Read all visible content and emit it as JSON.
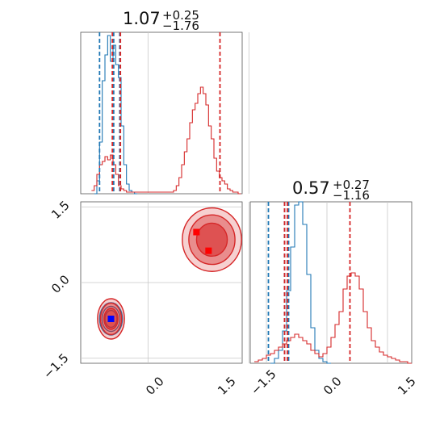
{
  "chart_data": [
    {
      "panel": "top-left",
      "type": "histogram",
      "title": {
        "value": "1.07",
        "upper": "+0.25",
        "lower": "−1.76"
      },
      "xlim": [
        -1.0,
        1.4
      ],
      "ylim": [
        0,
        1.0
      ],
      "grid": true,
      "series": [
        {
          "color": "#1f77b4",
          "x": [
            -0.78,
            -0.74,
            -0.7,
            -0.66,
            -0.62,
            -0.58,
            -0.54,
            -0.5,
            -0.46,
            -0.42,
            -0.38,
            -0.34,
            -0.3,
            -0.26,
            -0.22,
            -0.18
          ],
          "values": [
            0.0,
            0.08,
            0.32,
            0.7,
            0.86,
            0.98,
            0.82,
            0.92,
            0.8,
            0.72,
            0.42,
            0.18,
            0.06,
            0.02,
            0.01,
            0.0
          ]
        },
        {
          "color": "#d62728",
          "x": [
            -0.82,
            -0.78,
            -0.74,
            -0.7,
            -0.66,
            -0.62,
            -0.58,
            -0.54,
            -0.5,
            -0.46,
            -0.42,
            -0.38,
            -0.34,
            -0.3,
            0.36,
            0.4,
            0.44,
            0.48,
            0.52,
            0.56,
            0.6,
            0.64,
            0.68,
            0.72,
            0.76,
            0.8,
            0.84,
            0.88,
            0.92,
            0.96,
            1.0,
            1.04,
            1.08,
            1.12,
            1.16,
            1.2,
            1.24,
            1.28,
            1.32,
            1.36
          ],
          "values": [
            0.02,
            0.05,
            0.12,
            0.18,
            0.2,
            0.23,
            0.21,
            0.24,
            0.18,
            0.12,
            0.05,
            0.03,
            0.02,
            0.01,
            0.01,
            0.02,
            0.05,
            0.1,
            0.18,
            0.26,
            0.34,
            0.44,
            0.52,
            0.56,
            0.62,
            0.66,
            0.62,
            0.55,
            0.42,
            0.34,
            0.22,
            0.14,
            0.1,
            0.08,
            0.06,
            0.03,
            0.02,
            0.01,
            0.01,
            0.0
          ]
        }
      ],
      "vlines": [
        {
          "color": "#1f77b4",
          "x": -0.72
        },
        {
          "color": "#1f77b4",
          "x": -0.51
        },
        {
          "color": "#1f77b4",
          "x": -0.42
        },
        {
          "color": "#d62728",
          "x": -0.53
        },
        {
          "color": "#d62728",
          "x": -0.41
        },
        {
          "color": "#d62728",
          "x": 1.07
        }
      ]
    },
    {
      "panel": "bottom-left",
      "type": "scatter",
      "xlim": [
        -1.0,
        1.4
      ],
      "ylim": [
        -1.6,
        1.6
      ],
      "yticks": [
        "1.5",
        "0.0",
        "−1.5"
      ],
      "xticks": [
        "0.0",
        "1.5"
      ],
      "grid": true,
      "blobs": [
        {
          "color": "#1f77b4",
          "cx": -0.55,
          "cy": -0.72,
          "rx": 0.17,
          "ry": 0.32
        },
        {
          "color": "#d62728",
          "cx": -0.55,
          "cy": -0.72,
          "rx": 0.2,
          "ry": 0.4
        },
        {
          "color": "#d62728",
          "cx": 0.95,
          "cy": 0.85,
          "rx": 0.44,
          "ry": 0.63
        }
      ],
      "markers": [
        {
          "color": "#ff0000",
          "x": 0.72,
          "y": 1.0
        },
        {
          "color": "#ff0000",
          "x": 0.9,
          "y": 0.63
        },
        {
          "color": "#0000ff",
          "x": -0.55,
          "y": -0.72
        }
      ]
    },
    {
      "panel": "bottom-right",
      "type": "histogram",
      "title": {
        "value": "0.57",
        "upper": "+0.27",
        "lower": "−1.16"
      },
      "xlim": [
        -1.9,
        2.1
      ],
      "ylim": [
        0,
        1.0
      ],
      "xticks": [
        "−1.5",
        "0.0",
        "1.5"
      ],
      "grid": true,
      "series": [
        {
          "color": "#1f77b4",
          "x": [
            -1.35,
            -1.25,
            -1.15,
            -1.05,
            -0.95,
            -0.85,
            -0.75,
            -0.65,
            -0.55,
            -0.45,
            -0.35,
            -0.25,
            -0.15,
            -0.05,
            0.05
          ],
          "values": [
            0.0,
            0.03,
            0.08,
            0.2,
            0.45,
            0.72,
            0.98,
            1.0,
            0.86,
            0.55,
            0.22,
            0.08,
            0.03,
            0.01,
            0.0
          ]
        },
        {
          "color": "#d62728",
          "x": [
            -1.75,
            -1.65,
            -1.55,
            -1.45,
            -1.35,
            -1.25,
            -1.15,
            -1.05,
            -0.95,
            -0.85,
            -0.75,
            -0.65,
            -0.55,
            -0.45,
            -0.35,
            -0.25,
            -0.15,
            -0.05,
            0.05,
            0.15,
            0.25,
            0.35,
            0.45,
            0.55,
            0.65,
            0.75,
            0.85,
            0.95,
            1.05,
            1.15,
            1.25,
            1.35,
            1.45,
            1.55,
            1.65,
            1.75,
            1.85,
            1.95,
            2.05
          ],
          "values": [
            0.01,
            0.02,
            0.03,
            0.05,
            0.06,
            0.08,
            0.1,
            0.12,
            0.14,
            0.16,
            0.18,
            0.16,
            0.14,
            0.12,
            0.08,
            0.06,
            0.04,
            0.06,
            0.1,
            0.16,
            0.24,
            0.32,
            0.46,
            0.54,
            0.56,
            0.54,
            0.46,
            0.32,
            0.22,
            0.14,
            0.1,
            0.07,
            0.05,
            0.04,
            0.03,
            0.02,
            0.01,
            0.01,
            0.0
          ]
        }
      ],
      "vlines": [
        {
          "color": "#1f77b4",
          "x": -1.45
        },
        {
          "color": "#1f77b4",
          "x": -1.05
        },
        {
          "color": "#1f77b4",
          "x": -0.95
        },
        {
          "color": "#d62728",
          "x": -1.05
        },
        {
          "color": "#d62728",
          "x": -0.98
        },
        {
          "color": "#d62728",
          "x": 0.57
        }
      ]
    }
  ]
}
